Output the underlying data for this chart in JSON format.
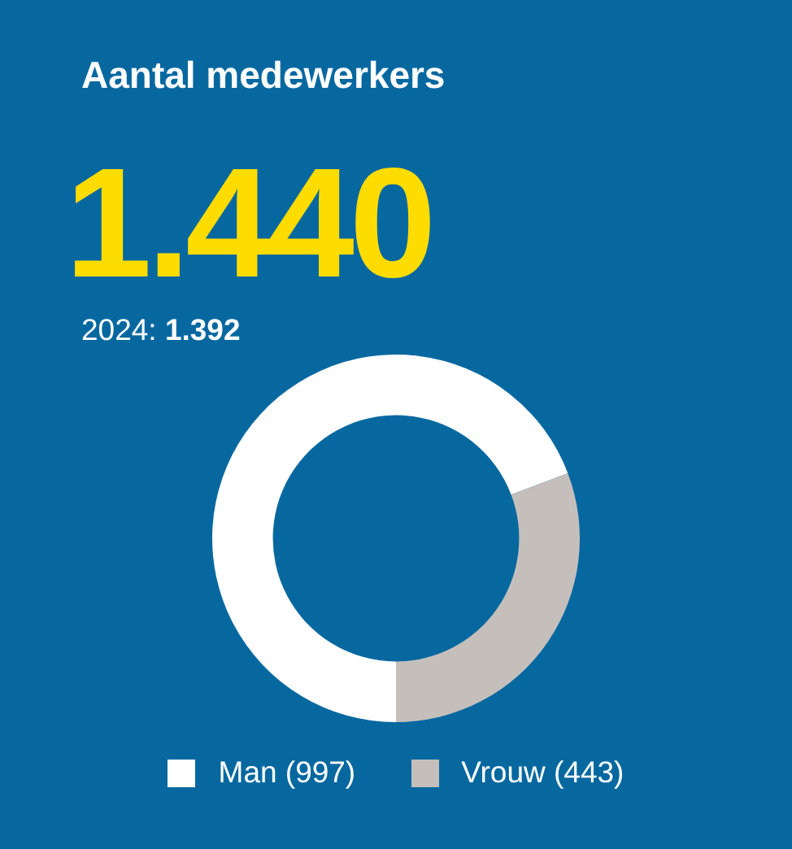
{
  "chart_data": {
    "type": "donut",
    "title": "Aantal medewerkers",
    "subtitle": "1.440",
    "annotations": [
      "2024: 1.392"
    ],
    "categories": [
      "Man (997)",
      "Vrouw (443)"
    ],
    "values": [
      997,
      443
    ],
    "colors": [
      "#ffffff",
      "#c5bfbc"
    ],
    "legend": "bottom"
  }
}
